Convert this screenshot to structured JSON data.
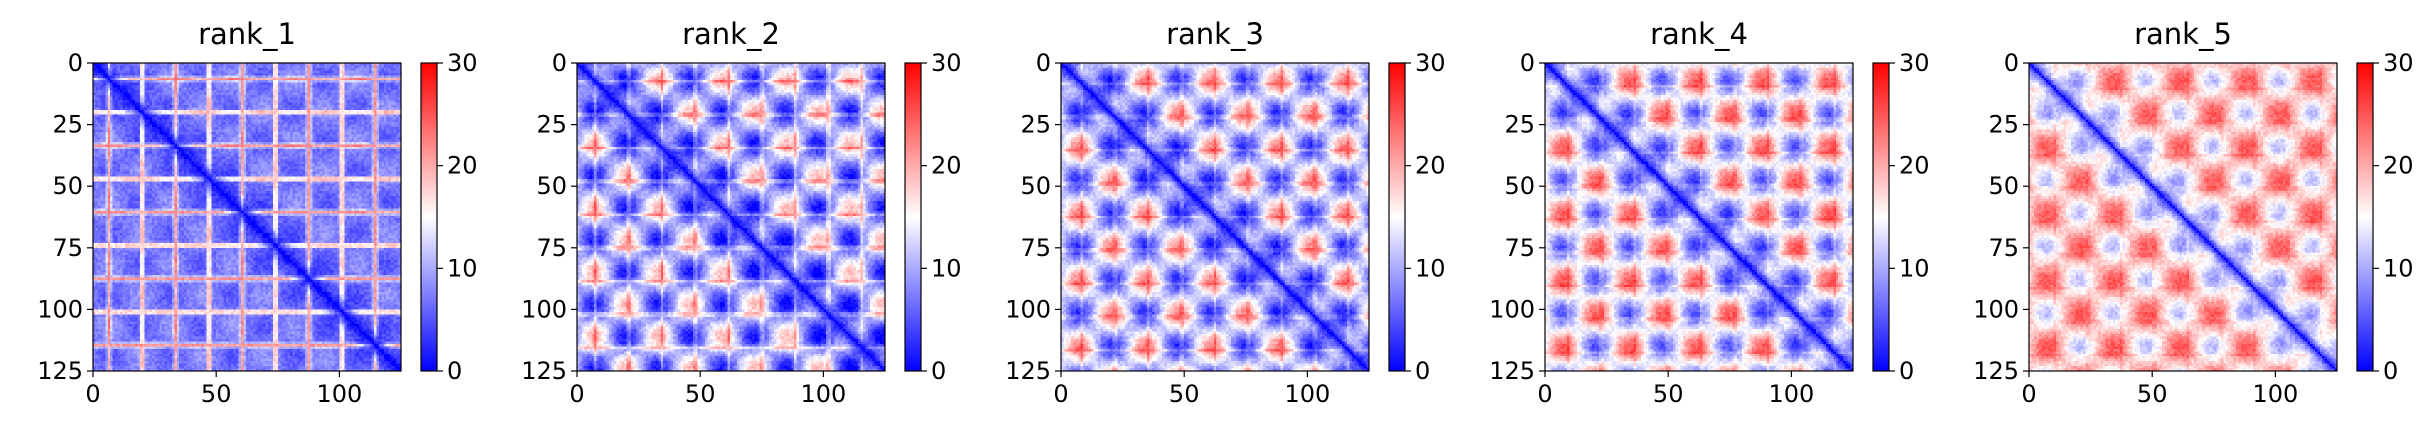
{
  "chart_data": [
    {
      "type": "heatmap",
      "title": "rank_1",
      "size": 125,
      "xlim": [
        0,
        125
      ],
      "ylim": [
        125,
        0
      ],
      "xticks": [
        0,
        50,
        100
      ],
      "yticks": [
        0,
        25,
        50,
        75,
        100,
        125
      ],
      "colorbar": {
        "min": 0,
        "max": 30,
        "ticks": [
          0,
          10,
          20,
          30
        ],
        "cmap": "bwr"
      },
      "pattern": {
        "offset": 7.0,
        "diag_dip": 7.0,
        "stripe_amp": 14.0,
        "stripe_period": 13.5,
        "stripe_phase": 6.0,
        "blob_amp": 2.0,
        "blob_period": 25.0
      }
    },
    {
      "type": "heatmap",
      "title": "rank_2",
      "size": 125,
      "xlim": [
        0,
        125
      ],
      "ylim": [
        125,
        0
      ],
      "xticks": [
        0,
        50,
        100
      ],
      "yticks": [
        0,
        25,
        50,
        75,
        100,
        125
      ],
      "colorbar": {
        "min": 0,
        "max": 30,
        "ticks": [
          0,
          10,
          20,
          30
        ],
        "cmap": "bwr"
      },
      "pattern": {
        "offset": 10.0,
        "diag_dip": 10.0,
        "stripe_amp": 6.0,
        "stripe_period": 13.5,
        "stripe_phase": 7.0,
        "blob_amp": 9.0,
        "blob_period": 26.0
      }
    },
    {
      "type": "heatmap",
      "title": "rank_3",
      "size": 125,
      "xlim": [
        0,
        125
      ],
      "ylim": [
        125,
        0
      ],
      "xticks": [
        0,
        50,
        100
      ],
      "yticks": [
        0,
        25,
        50,
        75,
        100,
        125
      ],
      "colorbar": {
        "min": 0,
        "max": 30,
        "ticks": [
          0,
          10,
          20,
          30
        ],
        "cmap": "bwr"
      },
      "pattern": {
        "offset": 12.0,
        "diag_dip": 12.0,
        "stripe_amp": 4.0,
        "stripe_period": 13.5,
        "stripe_phase": 8.0,
        "blob_amp": 10.0,
        "blob_period": 27.0
      }
    },
    {
      "type": "heatmap",
      "title": "rank_4",
      "size": 125,
      "xlim": [
        0,
        125
      ],
      "ylim": [
        125,
        0
      ],
      "xticks": [
        0,
        50,
        100
      ],
      "yticks": [
        0,
        25,
        50,
        75,
        100,
        125
      ],
      "colorbar": {
        "min": 0,
        "max": 30,
        "ticks": [
          0,
          10,
          20,
          30
        ],
        "cmap": "bwr"
      },
      "pattern": {
        "offset": 14.5,
        "diag_dip": 14.5,
        "stripe_amp": 3.0,
        "stripe_period": 13.5,
        "stripe_phase": 9.0,
        "blob_amp": 10.0,
        "blob_period": 27.0
      }
    },
    {
      "type": "heatmap",
      "title": "rank_5",
      "size": 125,
      "xlim": [
        0,
        125
      ],
      "ylim": [
        125,
        0
      ],
      "xticks": [
        0,
        50,
        100
      ],
      "yticks": [
        0,
        25,
        50,
        75,
        100,
        125
      ],
      "colorbar": {
        "min": 0,
        "max": 30,
        "ticks": [
          0,
          10,
          20,
          30
        ],
        "cmap": "bwr"
      },
      "pattern": {
        "offset": 18.0,
        "diag_dip": 17.0,
        "stripe_amp": 2.0,
        "stripe_period": 13.5,
        "stripe_phase": 10.0,
        "blob_amp": 7.0,
        "blob_period": 27.0
      }
    }
  ]
}
